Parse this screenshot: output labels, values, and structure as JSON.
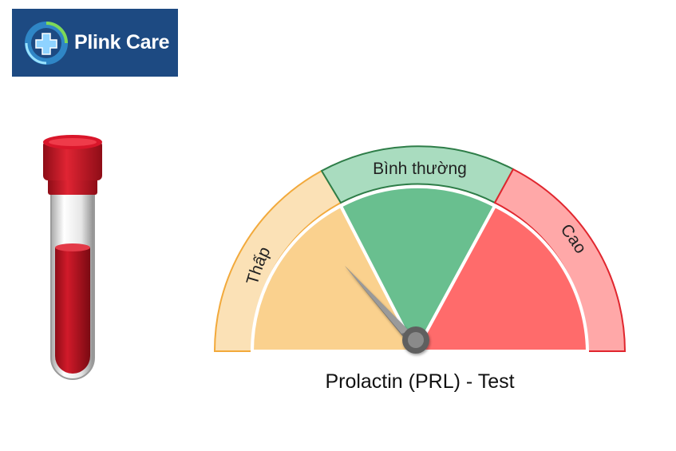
{
  "brand": {
    "name": "Plink Care",
    "logo_icon": "medical-cross-icon"
  },
  "gauge": {
    "title": "Prolactin (PRL) - Test",
    "zones": [
      {
        "label": "Thấp",
        "color_outer": "#fbe1b6",
        "color_inner": "#fad18e",
        "border": "#f2a93b"
      },
      {
        "label": "Bình thường",
        "color_outer": "#a9dcbf",
        "color_inner": "#69bf8f",
        "border": "#2e7d48"
      },
      {
        "label": "Cao",
        "color_outer": "#ffa8a8",
        "color_inner": "#ff6b6b",
        "border": "#e0262e"
      }
    ],
    "needle_zone": "Thấp"
  },
  "tube": {
    "icon": "blood-test-tube-icon",
    "cap_color": "#c8102e",
    "blood_color": "#c41425"
  }
}
